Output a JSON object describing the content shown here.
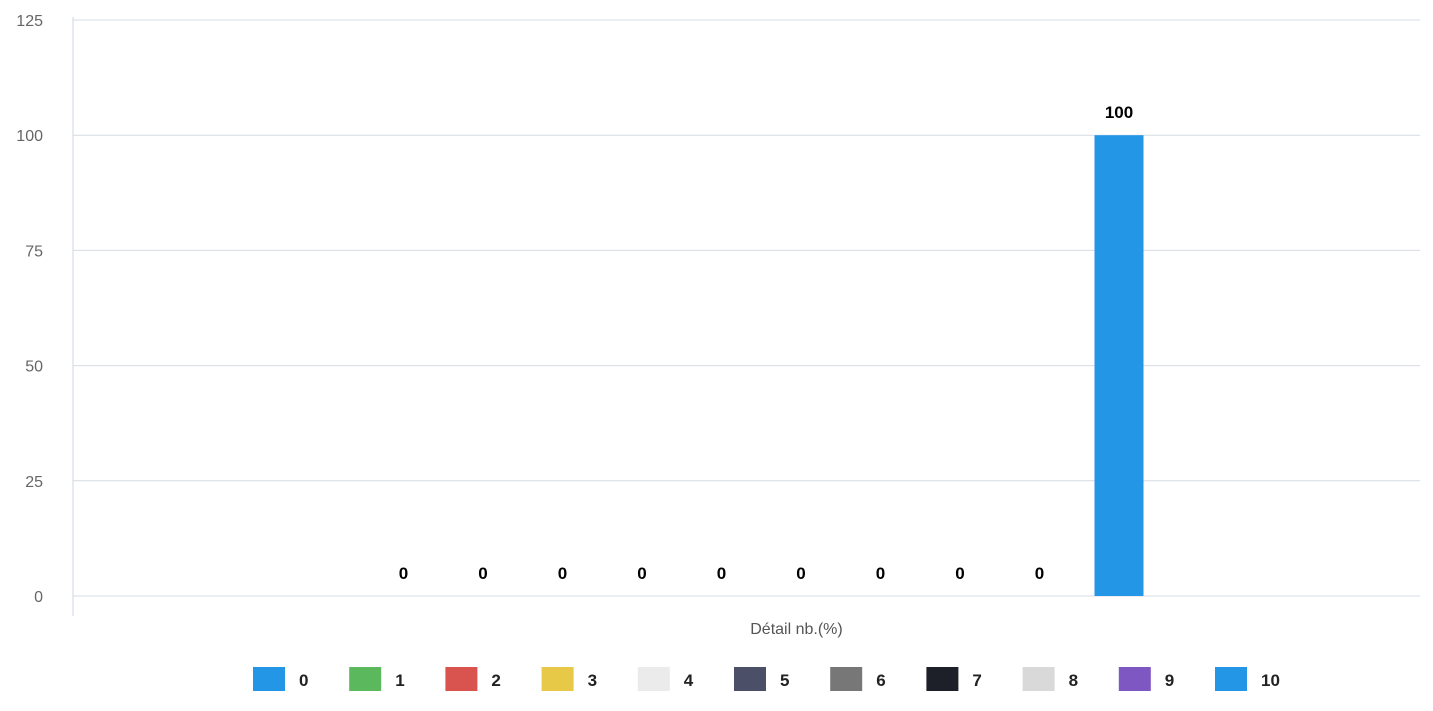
{
  "chart_data": {
    "type": "bar",
    "title": "",
    "xlabel": "Détail nb.(%)",
    "ylabel": "",
    "ylim": [
      0,
      125
    ],
    "yticks": [
      0,
      25,
      50,
      75,
      100,
      125
    ],
    "grid": true,
    "legend_position": "bottom",
    "categories": [
      "Détail nb.(%)"
    ],
    "series": [
      {
        "name": "0",
        "values": [
          null
        ],
        "color": "#2496E6"
      },
      {
        "name": "1",
        "values": [
          0
        ],
        "color": "#5CB85C"
      },
      {
        "name": "2",
        "values": [
          0
        ],
        "color": "#D9534F"
      },
      {
        "name": "3",
        "values": [
          0
        ],
        "color": "#E8C847"
      },
      {
        "name": "4",
        "values": [
          0
        ],
        "color": "#EBEBEB"
      },
      {
        "name": "5",
        "values": [
          0
        ],
        "color": "#4B4F68"
      },
      {
        "name": "6",
        "values": [
          0
        ],
        "color": "#777777"
      },
      {
        "name": "7",
        "values": [
          0
        ],
        "color": "#1E2029"
      },
      {
        "name": "8",
        "values": [
          0
        ],
        "color": "#D9D9D9"
      },
      {
        "name": "9",
        "values": [
          0
        ],
        "color": "#7E57C2"
      },
      {
        "name": "10",
        "values": [
          100
        ],
        "color": "#2496E6"
      }
    ]
  }
}
